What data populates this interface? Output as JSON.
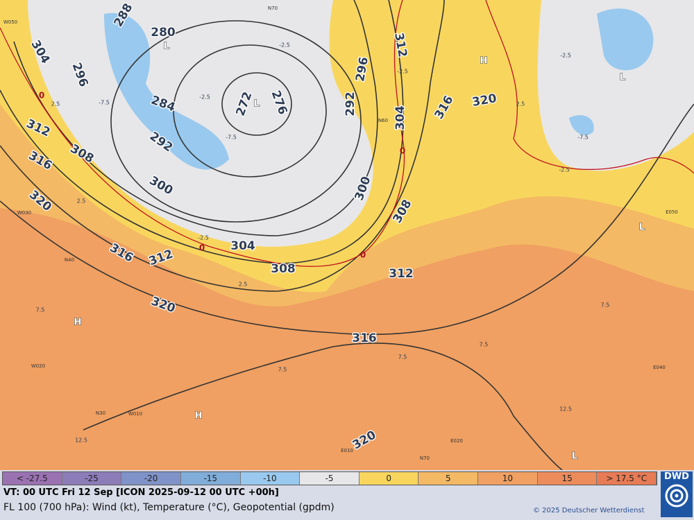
{
  "legend": [
    {
      "label": "< -27.5",
      "color": "#9a72b2"
    },
    {
      "label": "-25",
      "color": "#8c7cb8"
    },
    {
      "label": "-20",
      "color": "#8093c8"
    },
    {
      "label": "-15",
      "color": "#80add9"
    },
    {
      "label": "-10",
      "color": "#99c9ee"
    },
    {
      "label": "-5",
      "color": "#e7e7e9"
    },
    {
      "label": "0",
      "color": "#f8d65e"
    },
    {
      "label": "5",
      "color": "#f4b964"
    },
    {
      "label": "10",
      "color": "#f0a062"
    },
    {
      "label": "15",
      "color": "#ec8c5b"
    },
    {
      "label": "> 17.5 °C",
      "color": "#e77b55"
    }
  ],
  "footer": {
    "valid_time": "VT: 00 UTC Fri  12 Sep [ICON 2025-09-12 00 UTC +00h]",
    "description": "FL 100 (700 hPa): Wind (kt), Temperature (°C), Geopotential (gpdm)",
    "copyright": "© 2025 Deutscher Wetterdienst",
    "logo": "DWD"
  },
  "geopotential_labels": [
    288,
    280,
    304,
    296,
    284,
    272,
    276,
    292,
    312,
    308,
    316,
    300,
    320,
    316,
    312,
    304,
    308,
    320,
    312,
    316,
    320,
    308,
    300,
    296,
    292,
    312,
    304,
    316,
    320
  ],
  "pressure_centers": [
    "L",
    "L",
    "H",
    "L",
    "L",
    "H",
    "H",
    "L"
  ],
  "zero_isotherm_labels": [
    "0",
    "0",
    "0",
    "0"
  ],
  "temperature_labels": [
    "-2.5",
    "-2.5",
    "-2.5",
    "-2.5",
    "-2.5",
    "-2.5",
    "2.5",
    "2.5",
    "2.5",
    "2.5",
    "7.5",
    "7.5",
    "7.5",
    "7.5",
    "7.5",
    "-7.5",
    "-7.5",
    "-7.5",
    "12.5",
    "12.5"
  ],
  "graticule_labels": [
    "W050",
    "N70",
    "W030",
    "N40",
    "W020",
    "N30",
    "W010",
    "E050",
    "E040",
    "E010",
    "E020",
    "N70",
    "N60"
  ]
}
